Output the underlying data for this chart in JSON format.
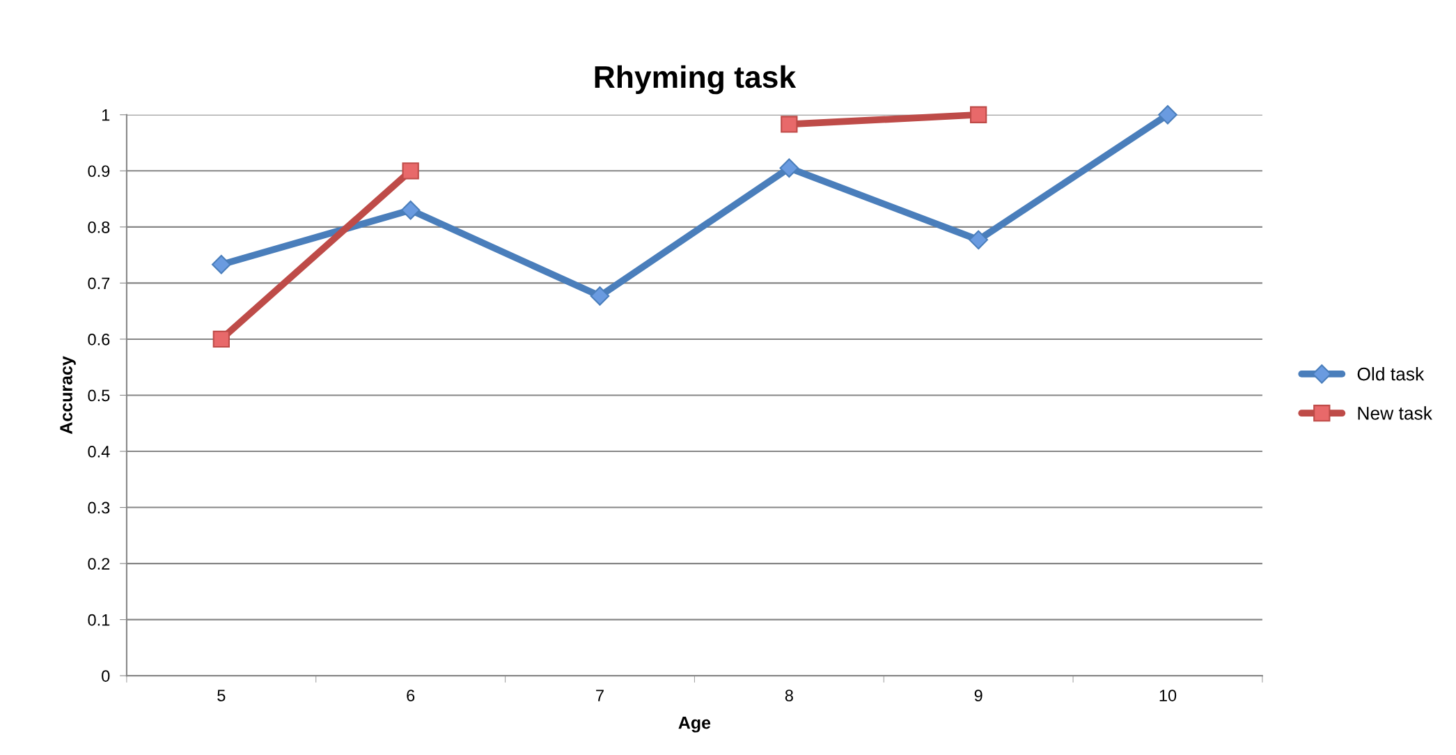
{
  "chart_data": {
    "type": "line",
    "title": "Rhyming task",
    "xlabel": "Age",
    "ylabel": "Accuracy",
    "categories": [
      "5",
      "6",
      "7",
      "8",
      "9",
      "10"
    ],
    "series": [
      {
        "name": "Old task",
        "color": "#4a7ebb",
        "values": [
          0.733,
          0.83,
          0.677,
          0.905,
          0.777,
          1.0
        ],
        "marker": "diamond"
      },
      {
        "name": "New task",
        "color": "#be4b48",
        "values": [
          0.6,
          0.9,
          null,
          0.983,
          1.0,
          null
        ],
        "marker": "square"
      }
    ],
    "ylim": [
      0,
      1
    ],
    "yticks": [
      0,
      0.1,
      0.2,
      0.3,
      0.4,
      0.5,
      0.6,
      0.7,
      0.8,
      0.9,
      1
    ],
    "grid": "y",
    "legend": "right",
    "line_style": "solid"
  }
}
